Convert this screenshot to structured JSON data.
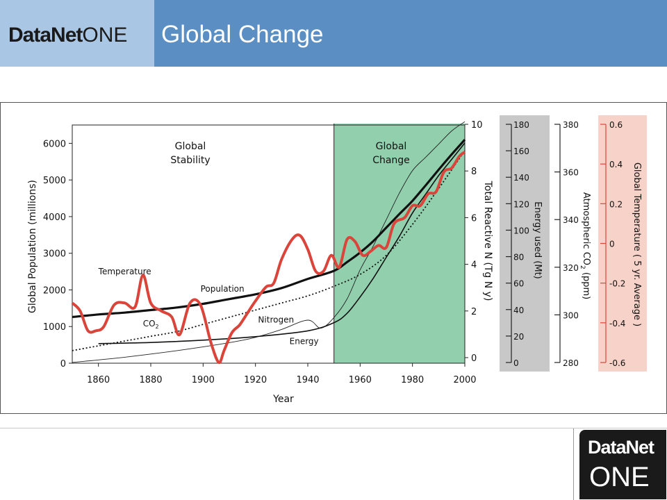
{
  "header": {
    "logo_word": "DataNet",
    "logo_one": "ONE",
    "title": "Global Change"
  },
  "badge": {
    "word": "DataNet",
    "one": "ONE"
  },
  "colors": {
    "header": "#5b8fc3",
    "logo_bg": "#a9c6e4",
    "change_region": "#91cfad",
    "temperature": "#d9453a",
    "energy_band": "#c8c8c8",
    "temp_band": "#f6d2c8"
  },
  "chart_data": {
    "type": "line",
    "xlabel": "Year",
    "xlim": [
      1850,
      2000
    ],
    "x_ticks": [
      1860,
      1880,
      1900,
      1920,
      1940,
      1960,
      1980,
      2000
    ],
    "regions": [
      {
        "label_line1": "Global",
        "label_line2": "Stability",
        "x_start": 1850,
        "x_end": 1950
      },
      {
        "label_line1": "Global",
        "label_line2": "Change",
        "x_start": 1950,
        "x_end": 2000
      }
    ],
    "axes": {
      "population": {
        "label": "Global Population (millions)",
        "range": [
          0,
          6500
        ],
        "ticks": [
          "0",
          "1000",
          "2000",
          "3000",
          "4000",
          "5000",
          "6000"
        ]
      },
      "nitrogen": {
        "label": "Total Reactive N (Tg N y)",
        "range": [
          0,
          10
        ],
        "ticks": [
          "0",
          "2",
          "4",
          "6",
          "8",
          "10"
        ]
      },
      "energy": {
        "label": "Energy used (Mt)",
        "range": [
          0,
          180
        ],
        "ticks": [
          "0",
          "20",
          "40",
          "60",
          "80",
          "100",
          "120",
          "140",
          "160",
          "180"
        ]
      },
      "co2": {
        "label_main": "Atmospheric CO",
        "label_sub": "2",
        "label_tail": " (ppm)",
        "range": [
          280,
          380
        ],
        "ticks": [
          "280",
          "300",
          "320",
          "340",
          "360",
          "380"
        ]
      },
      "temperature": {
        "label": "Global Temperature ( 5 yr. Average )",
        "range": [
          -0.6,
          0.6
        ],
        "ticks": [
          "0.6",
          "0.4",
          "0.2",
          "0",
          "-0.2",
          "-0.4",
          "-0.6"
        ]
      }
    },
    "series": [
      {
        "name": "Population",
        "axis": "population",
        "x": [
          1850,
          1860,
          1870,
          1880,
          1890,
          1900,
          1910,
          1920,
          1930,
          1940,
          1950,
          1955,
          1960,
          1965,
          1970,
          1975,
          1980,
          1985,
          1990,
          1995,
          2000
        ],
        "values": [
          1260,
          1330,
          1380,
          1450,
          1520,
          1620,
          1750,
          1880,
          2050,
          2300,
          2520,
          2760,
          3020,
          3330,
          3700,
          4070,
          4430,
          4850,
          5280,
          5700,
          6100
        ]
      },
      {
        "name": "CO2",
        "label_main": "CO",
        "label_sub": "2",
        "axis": "co2",
        "x": [
          1850,
          1860,
          1870,
          1880,
          1890,
          1900,
          1910,
          1920,
          1930,
          1940,
          1950,
          1960,
          1970,
          1980,
          1990,
          2000
        ],
        "values": [
          285,
          287,
          289,
          291,
          293,
          296,
          299,
          302,
          305,
          308,
          312,
          317,
          325,
          338,
          353,
          369
        ]
      },
      {
        "name": "Nitrogen",
        "axis": "nitrogen",
        "x": [
          1860,
          1880,
          1900,
          1920,
          1940,
          1950,
          1955,
          1960,
          1965,
          1970,
          1975,
          1980,
          1985,
          1990,
          1995,
          2000
        ],
        "values": [
          0.6,
          0.65,
          0.75,
          0.9,
          1.15,
          1.5,
          1.9,
          2.6,
          3.4,
          4.3,
          5.2,
          6.2,
          7.0,
          7.8,
          8.5,
          9.2
        ]
      },
      {
        "name": "Energy",
        "axis": "energy",
        "x": [
          1850,
          1870,
          1890,
          1910,
          1920,
          1930,
          1940,
          1945,
          1950,
          1955,
          1960,
          1965,
          1970,
          1975,
          1980,
          1985,
          1990,
          1995,
          2000
        ],
        "values": [
          0,
          4,
          9,
          15,
          19,
          25,
          32,
          26,
          34,
          48,
          70,
          88,
          108,
          128,
          145,
          155,
          165,
          175,
          182
        ]
      },
      {
        "name": "Temperature",
        "axis": "temperature",
        "x": [
          1850,
          1853,
          1856,
          1859,
          1862,
          1866,
          1870,
          1874,
          1877,
          1880,
          1884,
          1888,
          1891,
          1895,
          1899,
          1903,
          1906,
          1908,
          1911,
          1914,
          1917,
          1920,
          1924,
          1927,
          1930,
          1934,
          1937,
          1940,
          1943,
          1946,
          1949,
          1952,
          1955,
          1958,
          1961,
          1964,
          1967,
          1970,
          1973,
          1977,
          1980,
          1983,
          1986,
          1989,
          1992,
          1995,
          1998,
          2000
        ],
        "values": [
          -0.3,
          -0.34,
          -0.44,
          -0.44,
          -0.42,
          -0.31,
          -0.3,
          -0.32,
          -0.16,
          -0.3,
          -0.34,
          -0.37,
          -0.46,
          -0.3,
          -0.31,
          -0.5,
          -0.6,
          -0.54,
          -0.45,
          -0.41,
          -0.35,
          -0.29,
          -0.22,
          -0.2,
          -0.08,
          0.02,
          0.04,
          -0.03,
          -0.14,
          -0.14,
          -0.06,
          -0.12,
          0.02,
          0.01,
          -0.06,
          -0.04,
          -0.01,
          -0.02,
          0.1,
          0.13,
          0.19,
          0.19,
          0.25,
          0.26,
          0.36,
          0.38,
          0.44,
          0.46
        ]
      }
    ],
    "series_labels": [
      {
        "series": "Temperature",
        "text": "Temperature",
        "year": 1860,
        "pop": 2430
      },
      {
        "series": "Population",
        "text": "Population",
        "year": 1899,
        "pop": 1950
      },
      {
        "series": "CO2",
        "text": "CO",
        "sub": "2",
        "year": 1877,
        "pop": 1000
      },
      {
        "series": "Nitrogen",
        "text": "Nitrogen",
        "year": 1921,
        "pop": 1110
      },
      {
        "series": "Energy",
        "text": "Energy",
        "year": 1933,
        "pop": 520
      }
    ]
  }
}
